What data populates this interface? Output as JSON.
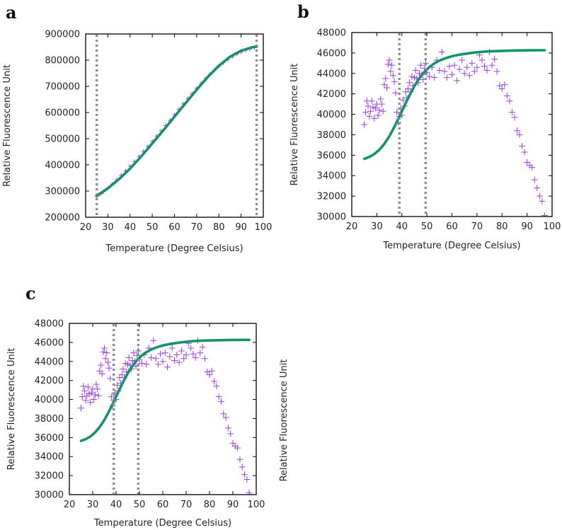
{
  "chart_data": [
    {
      "panel": "a",
      "type": "scatter",
      "xlabel": "Temperature (Degree Celsius)",
      "ylabel": "Relative Fluorescence Unit",
      "xlim": [
        20,
        100
      ],
      "ylim": [
        200000,
        900000
      ],
      "xticks": [
        20,
        30,
        40,
        50,
        60,
        70,
        80,
        90,
        100
      ],
      "yticks": [
        200000,
        300000,
        400000,
        500000,
        600000,
        700000,
        800000,
        900000
      ],
      "vlines": [
        25,
        97
      ],
      "fit_color": "#12936b",
      "point_color": "#9b3fe0",
      "series": [
        {
          "name": "measured",
          "x": [
            25,
            26,
            27,
            28,
            30,
            32,
            34,
            36,
            38,
            40,
            42,
            44,
            46,
            48,
            50,
            52,
            54,
            56,
            58,
            60,
            62,
            64,
            66,
            68,
            70,
            72,
            74,
            76,
            78,
            80,
            82,
            84,
            86,
            88,
            90,
            92,
            94,
            96
          ],
          "y": [
            280000,
            287000,
            291000,
            298000,
            312000,
            327000,
            343000,
            360000,
            377000,
            395000,
            413000,
            432000,
            451000,
            470000,
            490000,
            510000,
            530000,
            550000,
            570000,
            591000,
            612000,
            633000,
            653000,
            672000,
            692000,
            711000,
            729000,
            746000,
            762000,
            777000,
            790000,
            802000,
            813000,
            823000,
            831000,
            838000,
            843000,
            847000
          ]
        },
        {
          "name": "fit",
          "x": [
            25,
            30,
            35,
            40,
            45,
            50,
            55,
            60,
            65,
            70,
            75,
            80,
            85,
            90,
            95,
            97
          ],
          "y": [
            282000,
            310000,
            345000,
            386000,
            432000,
            482000,
            532000,
            584000,
            636000,
            687000,
            736000,
            779000,
            813000,
            836000,
            849000,
            852000
          ]
        }
      ]
    },
    {
      "panel": "b",
      "type": "scatter",
      "xlabel": "Temperature (Degree Celsius)",
      "ylabel": "Relative Fluorescence Unit",
      "xlim": [
        20,
        100
      ],
      "ylim": [
        30000,
        48000
      ],
      "xticks": [
        20,
        30,
        40,
        50,
        60,
        70,
        80,
        90,
        100
      ],
      "yticks": [
        30000,
        32000,
        34000,
        36000,
        38000,
        40000,
        42000,
        44000,
        46000,
        48000
      ],
      "vlines": [
        39,
        49.5
      ],
      "fit_color": "#12936b",
      "point_color": "#9b3fe0",
      "series": [
        {
          "name": "measured",
          "x": [
            25,
            25.5,
            26,
            26.5,
            27,
            27.5,
            28,
            28.5,
            29,
            29.5,
            30,
            30.5,
            31,
            31.5,
            32,
            32.5,
            33,
            33.5,
            34,
            34.5,
            35,
            35.5,
            36,
            36.5,
            37,
            37.5,
            38,
            38.5,
            39,
            39.5,
            40,
            40.5,
            41,
            41.5,
            42,
            42.5,
            43,
            43.5,
            44,
            44.5,
            45,
            45.5,
            46,
            46.5,
            47,
            47.5,
            48,
            48.5,
            49,
            49.5,
            50,
            51,
            52,
            53,
            54,
            55,
            56,
            57,
            58,
            59,
            60,
            61,
            62,
            63,
            64,
            65,
            66,
            67,
            68,
            69,
            70,
            71,
            72,
            73,
            74,
            75,
            76,
            77,
            78,
            79,
            80,
            81,
            82,
            83,
            84,
            85,
            86,
            87,
            88,
            89,
            90,
            91,
            92,
            93,
            94,
            95,
            96,
            97
          ],
          "y": [
            39000,
            40200,
            41300,
            40800,
            39800,
            40300,
            41300,
            40700,
            39600,
            40600,
            41000,
            39900,
            40400,
            41500,
            41000,
            40300,
            42900,
            43500,
            42600,
            44900,
            45300,
            44200,
            44800,
            43800,
            43200,
            42100,
            40200,
            39200,
            39800,
            40600,
            39900,
            41400,
            40800,
            42200,
            41600,
            42500,
            43100,
            42200,
            43700,
            42800,
            43600,
            44300,
            43500,
            43100,
            44000,
            44800,
            43900,
            43400,
            44500,
            45000,
            44100,
            43700,
            44600,
            43600,
            45300,
            44300,
            46100,
            44200,
            43600,
            44700,
            43900,
            44800,
            43300,
            44400,
            45300,
            44000,
            44600,
            43800,
            45000,
            44200,
            44600,
            45800,
            45300,
            44700,
            44300,
            46100,
            44800,
            45400,
            44200,
            42800,
            42500,
            42900,
            41800,
            41300,
            40200,
            39700,
            38400,
            38000,
            36900,
            36300,
            35300,
            35000,
            34800,
            33600,
            32800,
            32000,
            31500,
            30100
          ]
        },
        {
          "name": "fit",
          "x": [
            25,
            27,
            29,
            31,
            33,
            35,
            37,
            39,
            41,
            43,
            45,
            47,
            49,
            51,
            53,
            55,
            57,
            59,
            61,
            63,
            65,
            67,
            69,
            71,
            73,
            75,
            80,
            85,
            90,
            95,
            97
          ],
          "y": [
            35650,
            35830,
            36110,
            36530,
            37110,
            37860,
            38760,
            39770,
            40820,
            41840,
            42760,
            43530,
            44150,
            44630,
            44980,
            45250,
            45450,
            45610,
            45730,
            45830,
            45910,
            45980,
            46040,
            46090,
            46130,
            46160,
            46210,
            46240,
            46260,
            46270,
            46270
          ]
        }
      ]
    },
    {
      "panel": "c",
      "type": "scatter",
      "xlabel": "Temperature (Degree Celsius)",
      "ylabel": "Relative Fluorescence Unit",
      "xlim": [
        20,
        100
      ],
      "ylim": [
        30000,
        48000
      ],
      "xticks": [
        20,
        30,
        40,
        50,
        60,
        70,
        80,
        90,
        100
      ],
      "yticks": [
        30000,
        32000,
        34000,
        36000,
        38000,
        40000,
        42000,
        44000,
        46000,
        48000
      ],
      "vlines": [
        39,
        49.5
      ],
      "fit_color": "#12936b",
      "point_color": "#9b3fe0",
      "series": [
        {
          "name": "measured",
          "x": [
            25,
            25.5,
            26,
            26.5,
            27,
            27.5,
            28,
            28.5,
            29,
            29.5,
            30,
            30.5,
            31,
            31.5,
            32,
            32.5,
            33,
            33.5,
            34,
            34.5,
            35,
            35.5,
            36,
            36.5,
            37,
            37.5,
            38,
            38.5,
            39,
            39.5,
            40,
            40.5,
            41,
            41.5,
            42,
            42.5,
            43,
            43.5,
            44,
            44.5,
            45,
            45.5,
            46,
            46.5,
            47,
            47.5,
            48,
            48.5,
            49,
            49.5,
            50,
            51,
            52,
            53,
            54,
            55,
            56,
            57,
            58,
            59,
            60,
            61,
            62,
            63,
            64,
            65,
            66,
            67,
            68,
            69,
            70,
            71,
            72,
            73,
            74,
            75,
            76,
            77,
            78,
            79,
            80,
            81,
            82,
            83,
            84,
            85,
            86,
            87,
            88,
            89,
            90,
            91,
            92,
            93,
            94,
            95,
            96,
            97
          ],
          "y": [
            39100,
            40300,
            41400,
            40900,
            39900,
            40400,
            41300,
            40600,
            39700,
            40700,
            41100,
            40000,
            40500,
            41600,
            41100,
            40400,
            43000,
            43600,
            42700,
            45000,
            45400,
            44300,
            44900,
            43900,
            43300,
            42200,
            40300,
            39300,
            39900,
            40700,
            40000,
            41500,
            40900,
            42300,
            41700,
            42600,
            43200,
            42300,
            43800,
            42900,
            43700,
            44400,
            43600,
            43200,
            44100,
            44900,
            44000,
            43500,
            44600,
            45100,
            44200,
            43800,
            44700,
            43700,
            45400,
            44400,
            46200,
            44300,
            43700,
            44800,
            44000,
            44900,
            43400,
            44500,
            45400,
            44100,
            44700,
            43900,
            45100,
            44300,
            44700,
            45900,
            45400,
            44800,
            44400,
            46200,
            44900,
            45500,
            44300,
            42900,
            42600,
            43000,
            41900,
            41400,
            40300,
            39800,
            38500,
            38100,
            37000,
            36400,
            35400,
            35100,
            34900,
            33700,
            32900,
            32100,
            31600,
            30200
          ]
        },
        {
          "name": "fit",
          "x": [
            25,
            27,
            29,
            31,
            33,
            35,
            37,
            39,
            41,
            43,
            45,
            47,
            49,
            51,
            53,
            55,
            57,
            59,
            61,
            63,
            65,
            67,
            69,
            71,
            73,
            75,
            80,
            85,
            90,
            95,
            97
          ],
          "y": [
            35650,
            35830,
            36110,
            36530,
            37110,
            37860,
            38760,
            39770,
            40820,
            41840,
            42760,
            43530,
            44150,
            44630,
            44980,
            45250,
            45450,
            45610,
            45730,
            45830,
            45910,
            45980,
            46040,
            46090,
            46130,
            46160,
            46210,
            46240,
            46260,
            46270,
            46270
          ]
        }
      ]
    }
  ],
  "panel_labels": [
    "a",
    "b",
    "c"
  ],
  "extra_ylabel": "Relative Fluorescence Unit"
}
